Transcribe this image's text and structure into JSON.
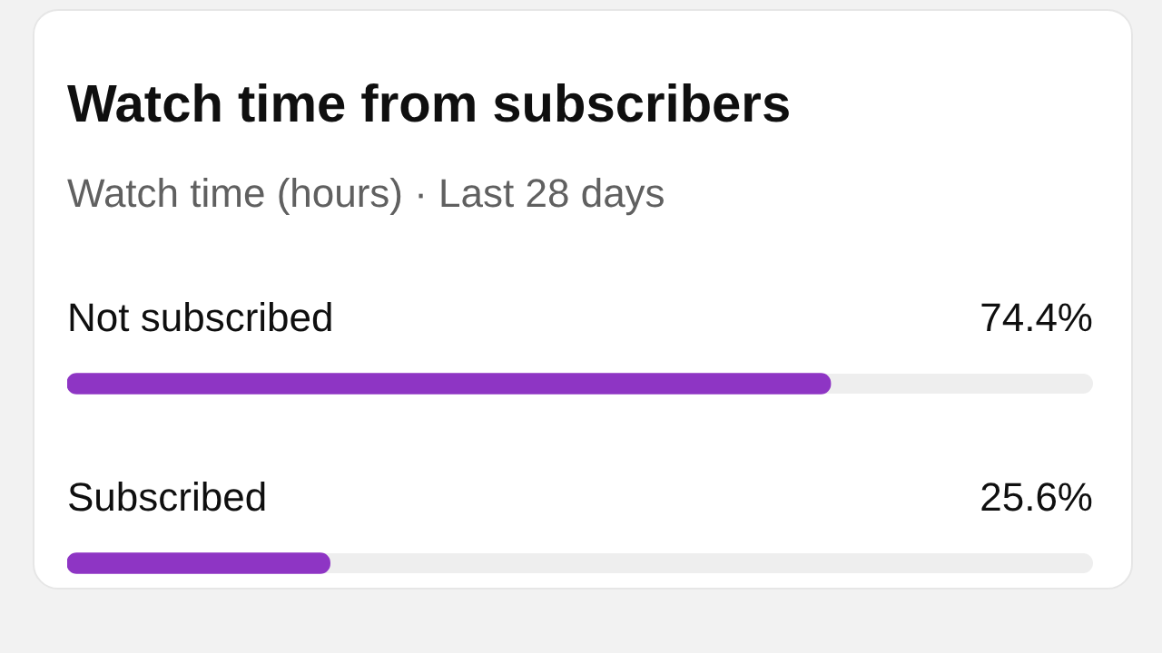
{
  "chart_data": {
    "type": "bar",
    "title": "Watch time from subscribers",
    "subtitle": "Watch time (hours) · Last 28 days",
    "categories": [
      "Not subscribed",
      "Subscribed"
    ],
    "values": [
      74.4,
      25.6
    ],
    "value_labels": [
      "74.4%",
      "25.6%"
    ],
    "orientation": "horizontal",
    "color": "#8e35c4",
    "xlim": [
      0,
      100
    ],
    "tick_labels": false,
    "legend": false
  }
}
